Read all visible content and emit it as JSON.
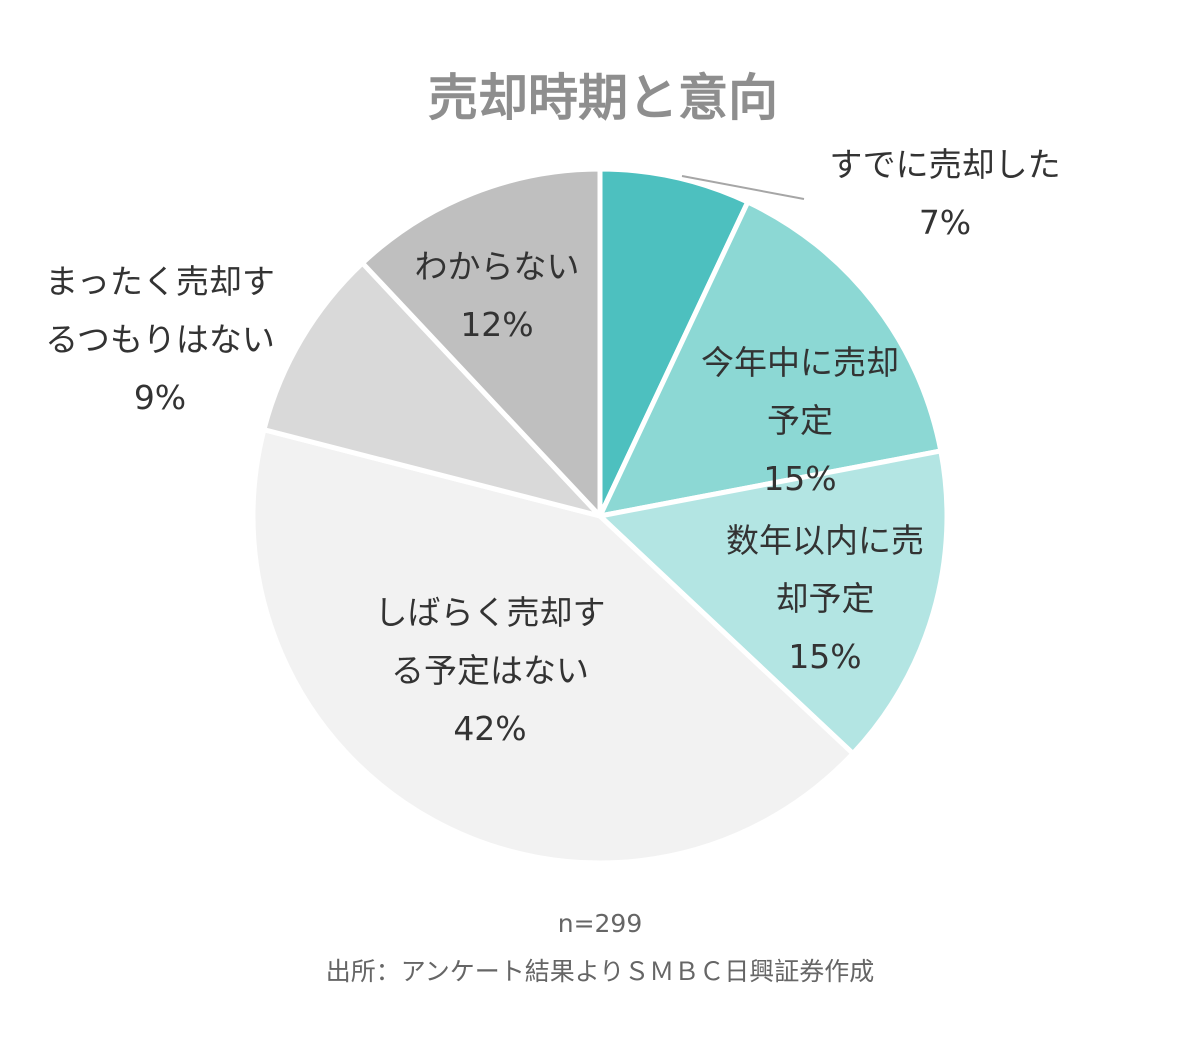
{
  "chart_data": {
    "type": "pie",
    "title": "売却時期と意向",
    "slices": [
      {
        "label_lines": [
          "すでに売却した"
        ],
        "percent_text": "7%",
        "value": 7,
        "color": "#4dc0bf"
      },
      {
        "label_lines": [
          "今年中に売却",
          "予定"
        ],
        "percent_text": "15%",
        "value": 15,
        "color": "#8cd8d4"
      },
      {
        "label_lines": [
          "数年以内に売",
          "却予定"
        ],
        "percent_text": "15%",
        "value": 15,
        "color": "#b3e5e3"
      },
      {
        "label_lines": [
          "しばらく売却す",
          "る予定はない"
        ],
        "percent_text": "42%",
        "value": 42,
        "color": "#f2f2f2"
      },
      {
        "label_lines": [
          "まったく売却す",
          "るつもりはない"
        ],
        "percent_text": "9%",
        "value": 9,
        "color": "#d9d9d9"
      },
      {
        "label_lines": [
          "わからない"
        ],
        "percent_text": "12%",
        "value": 12,
        "color": "#bfbfbf"
      }
    ],
    "sample_size": "n=299",
    "source": "出所：アンケート結果よりＳＭＢＣ日興証券作成"
  }
}
